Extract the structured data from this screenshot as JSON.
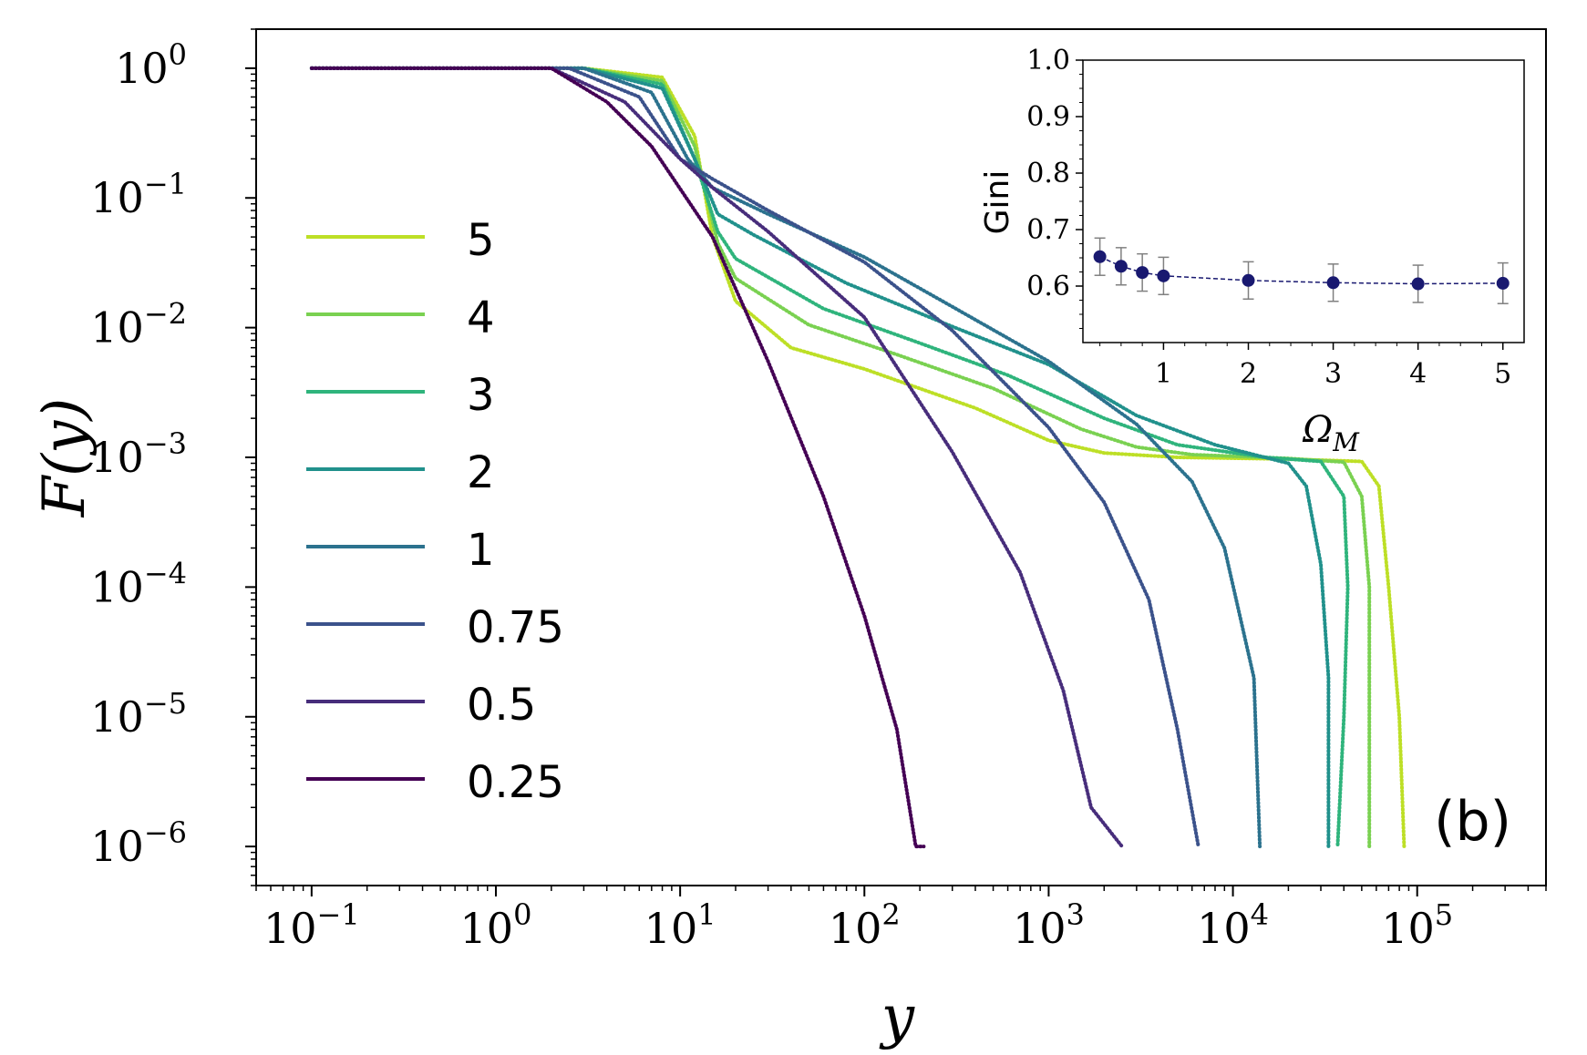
{
  "chart_data": [
    {
      "type": "line",
      "title": "",
      "xlabel": "y",
      "ylabel": "F(y)",
      "xscale": "log",
      "yscale": "log",
      "xlim": [
        0.05,
        500000
      ],
      "ylim": [
        5e-07,
        2
      ],
      "xticks": [
        {
          "base": "10",
          "exp": "−1"
        },
        {
          "base": "10",
          "exp": "0"
        },
        {
          "base": "10",
          "exp": "1"
        },
        {
          "base": "10",
          "exp": "2"
        },
        {
          "base": "10",
          "exp": "3"
        },
        {
          "base": "10",
          "exp": "4"
        },
        {
          "base": "10",
          "exp": "5"
        }
      ],
      "yticks": [
        {
          "base": "10",
          "exp": "0"
        },
        {
          "base": "10",
          "exp": "−1"
        },
        {
          "base": "10",
          "exp": "−2"
        },
        {
          "base": "10",
          "exp": "−3"
        },
        {
          "base": "10",
          "exp": "−4"
        },
        {
          "base": "10",
          "exp": "−5"
        },
        {
          "base": "10",
          "exp": "−6"
        }
      ],
      "panel_label": "(b)",
      "legend_position": "center-left",
      "series": [
        {
          "name": "5",
          "color": "#bddf26",
          "points": [
            [
              0.1,
              1
            ],
            [
              3,
              1
            ],
            [
              8,
              0.85
            ],
            [
              12,
              0.3
            ],
            [
              15,
              0.05
            ],
            [
              20,
              0.016
            ],
            [
              40,
              0.007
            ],
            [
              100,
              0.0048
            ],
            [
              400,
              0.0024
            ],
            [
              1000,
              0.00135
            ],
            [
              2000,
              0.00108
            ],
            [
              5000,
              0.001
            ],
            [
              20000,
              0.00097
            ],
            [
              50000,
              0.00093
            ],
            [
              62000,
              0.0006
            ],
            [
              70000,
              0.0001
            ],
            [
              80000,
              1e-05
            ],
            [
              85000,
              1e-06
            ]
          ]
        },
        {
          "name": "4",
          "color": "#7ad151",
          "points": [
            [
              0.1,
              1
            ],
            [
              3,
              1
            ],
            [
              8,
              0.8
            ],
            [
              12,
              0.25
            ],
            [
              16,
              0.045
            ],
            [
              20,
              0.024
            ],
            [
              50,
              0.0105
            ],
            [
              150,
              0.0062
            ],
            [
              500,
              0.0034
            ],
            [
              1500,
              0.00165
            ],
            [
              3000,
              0.0012
            ],
            [
              6000,
              0.00105
            ],
            [
              20000,
              0.00098
            ],
            [
              40000,
              0.00092
            ],
            [
              50000,
              0.0005
            ],
            [
              55000,
              0.0001
            ],
            [
              55000,
              1e-05
            ],
            [
              55000,
              1e-06
            ]
          ]
        },
        {
          "name": "3",
          "color": "#2fb47c",
          "points": [
            [
              0.1,
              1
            ],
            [
              3,
              1
            ],
            [
              8,
              0.75
            ],
            [
              12,
              0.2
            ],
            [
              16,
              0.055
            ],
            [
              20,
              0.034
            ],
            [
              60,
              0.014
            ],
            [
              200,
              0.0076
            ],
            [
              600,
              0.0043
            ],
            [
              2000,
              0.002
            ],
            [
              5000,
              0.00125
            ],
            [
              15000,
              0.001
            ],
            [
              30000,
              0.00093
            ],
            [
              40000,
              0.0005
            ],
            [
              42000,
              0.0001
            ],
            [
              40000,
              1e-05
            ],
            [
              37000,
              1e-06
            ]
          ]
        },
        {
          "name": "2",
          "color": "#21918c",
          "points": [
            [
              0.1,
              1
            ],
            [
              3,
              1
            ],
            [
              8,
              0.7
            ],
            [
              12,
              0.2
            ],
            [
              16,
              0.075
            ],
            [
              25,
              0.052
            ],
            [
              80,
              0.022
            ],
            [
              300,
              0.0102
            ],
            [
              1000,
              0.0052
            ],
            [
              3000,
              0.0021
            ],
            [
              8000,
              0.00125
            ],
            [
              20000,
              0.0009
            ],
            [
              25000,
              0.0006
            ],
            [
              30000,
              0.00015
            ],
            [
              33000,
              2e-05
            ],
            [
              33000,
              1e-06
            ]
          ]
        },
        {
          "name": "1",
          "color": "#2c728e",
          "points": [
            [
              0.1,
              1
            ],
            [
              3,
              1
            ],
            [
              7,
              0.65
            ],
            [
              11,
              0.2
            ],
            [
              15,
              0.12
            ],
            [
              30,
              0.075
            ],
            [
              100,
              0.035
            ],
            [
              300,
              0.0145
            ],
            [
              1000,
              0.0055
            ],
            [
              3000,
              0.0018
            ],
            [
              6000,
              0.00065
            ],
            [
              9000,
              0.0002
            ],
            [
              13000,
              2e-05
            ],
            [
              14000,
              1e-06
            ]
          ]
        },
        {
          "name": "0.75",
          "color": "#3b528b",
          "points": [
            [
              0.1,
              1
            ],
            [
              2.5,
              1
            ],
            [
              6,
              0.6
            ],
            [
              10,
              0.2
            ],
            [
              15,
              0.14
            ],
            [
              30,
              0.08
            ],
            [
              100,
              0.032
            ],
            [
              300,
              0.0095
            ],
            [
              1000,
              0.0017
            ],
            [
              2000,
              0.00045
            ],
            [
              3500,
              8e-05
            ],
            [
              5000,
              8e-06
            ],
            [
              6500,
              1e-06
            ]
          ]
        },
        {
          "name": "0.5",
          "color": "#472d7b",
          "points": [
            [
              0.1,
              1
            ],
            [
              2,
              1
            ],
            [
              5,
              0.55
            ],
            [
              10,
              0.2
            ],
            [
              15,
              0.12
            ],
            [
              30,
              0.055
            ],
            [
              100,
              0.012
            ],
            [
              300,
              0.0011
            ],
            [
              700,
              0.00013
            ],
            [
              1200,
              1.6e-05
            ],
            [
              1700,
              2e-06
            ],
            [
              2500,
              1e-06
            ]
          ]
        },
        {
          "name": "0.25",
          "color": "#440154",
          "points": [
            [
              0.1,
              1
            ],
            [
              2,
              1
            ],
            [
              4,
              0.55
            ],
            [
              7,
              0.25
            ],
            [
              15,
              0.05
            ],
            [
              30,
              0.0055
            ],
            [
              60,
              0.0005
            ],
            [
              100,
              6e-05
            ],
            [
              150,
              8e-06
            ],
            [
              190,
              1e-06
            ],
            [
              210,
              1e-06
            ]
          ]
        }
      ]
    },
    {
      "type": "scatter",
      "title": "",
      "xlabel": "Ω_M",
      "ylabel": "Gini",
      "xlim": [
        0.05,
        5.25
      ],
      "ylim": [
        0.5,
        1.0
      ],
      "xticks": [
        "1",
        "2",
        "3",
        "4",
        "5"
      ],
      "yticks": [
        "0.6",
        "0.7",
        "0.8",
        "0.9",
        "1.0"
      ],
      "color": "#191970",
      "errorbar_color": "#808080",
      "points": [
        {
          "x": 0.25,
          "y": 0.652,
          "err": 0.033
        },
        {
          "x": 0.5,
          "y": 0.635,
          "err": 0.033
        },
        {
          "x": 0.75,
          "y": 0.624,
          "err": 0.033
        },
        {
          "x": 1,
          "y": 0.618,
          "err": 0.033
        },
        {
          "x": 2,
          "y": 0.61,
          "err": 0.033
        },
        {
          "x": 3,
          "y": 0.606,
          "err": 0.033
        },
        {
          "x": 4,
          "y": 0.604,
          "err": 0.033
        },
        {
          "x": 5,
          "y": 0.605,
          "err": 0.036
        }
      ]
    }
  ]
}
